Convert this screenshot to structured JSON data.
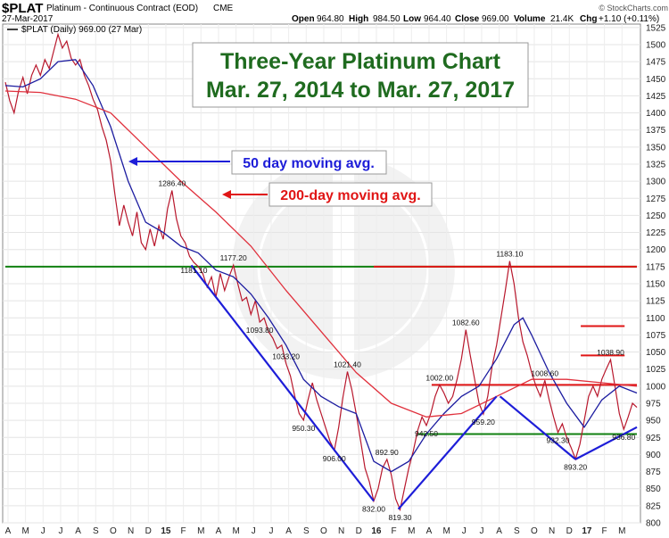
{
  "header": {
    "symbol": "$PLAT",
    "description": "Platinum - Continuous Contract (EOD)",
    "exchange": "CME",
    "date": "27-Mar-2017",
    "open_label": "Open",
    "open": "964.80",
    "high_label": "High",
    "high": "984.50",
    "low_label": "Low",
    "low": "964.40",
    "close_label": "Close",
    "close": "969.00",
    "volume_label": "Volume",
    "volume": "21.4K",
    "chg_label": "Chg",
    "chg": "+1.10 (+0.11%)",
    "watermark": "© StockCharts.com",
    "legend": "$PLAT (Daily) 969.00 (27 Mar)"
  },
  "colors": {
    "price": "#b8172c",
    "ma50": "#1c1ca0",
    "ma200": "#e0303c",
    "title": "#1f6b1f",
    "blue_line": "#1d1dd8",
    "green_line": "#108010",
    "red_line": "#e01515"
  },
  "chart_data": {
    "type": "line",
    "title_line1": "Three-Year Platinum Chart",
    "title_line2": "Mar. 27, 2014 to Mar. 27, 2017",
    "ylim": [
      800,
      1530
    ],
    "y_ticks": [
      800,
      825,
      850,
      875,
      900,
      925,
      950,
      975,
      1000,
      1025,
      1050,
      1075,
      1100,
      1125,
      1150,
      1175,
      1200,
      1225,
      1250,
      1275,
      1300,
      1325,
      1350,
      1375,
      1400,
      1425,
      1450,
      1475,
      1500,
      1525
    ],
    "month_labels": [
      "A",
      "M",
      "J",
      "J",
      "A",
      "S",
      "O",
      "N",
      "D",
      "15",
      "F",
      "M",
      "A",
      "M",
      "J",
      "J",
      "A",
      "S",
      "O",
      "N",
      "D",
      "16",
      "F",
      "M",
      "A",
      "M",
      "J",
      "J",
      "A",
      "S",
      "O",
      "N",
      "D",
      "17",
      "F",
      "M"
    ],
    "x_range": [
      0,
      36
    ],
    "series": [
      {
        "key": "price",
        "points": [
          [
            0,
            1445
          ],
          [
            0.25,
            1418
          ],
          [
            0.5,
            1400
          ],
          [
            0.75,
            1432
          ],
          [
            1,
            1452
          ],
          [
            1.25,
            1428
          ],
          [
            1.5,
            1455
          ],
          [
            1.75,
            1470
          ],
          [
            2,
            1455
          ],
          [
            2.25,
            1478
          ],
          [
            2.5,
            1465
          ],
          [
            2.75,
            1490
          ],
          [
            3,
            1515
          ],
          [
            3.25,
            1495
          ],
          [
            3.5,
            1505
          ],
          [
            3.75,
            1480
          ],
          [
            4,
            1470
          ],
          [
            4.25,
            1478
          ],
          [
            4.5,
            1455
          ],
          [
            4.75,
            1440
          ],
          [
            5,
            1420
          ],
          [
            5.25,
            1405
          ],
          [
            5.5,
            1380
          ],
          [
            5.75,
            1360
          ],
          [
            6,
            1330
          ],
          [
            6.25,
            1280
          ],
          [
            6.5,
            1235
          ],
          [
            6.75,
            1265
          ],
          [
            7,
            1240
          ],
          [
            7.25,
            1220
          ],
          [
            7.5,
            1255
          ],
          [
            7.75,
            1210
          ],
          [
            8,
            1200
          ],
          [
            8.25,
            1230
          ],
          [
            8.5,
            1205
          ],
          [
            8.75,
            1235
          ],
          [
            9,
            1215
          ],
          [
            9.25,
            1260
          ],
          [
            9.5,
            1286.4
          ],
          [
            9.75,
            1245
          ],
          [
            10,
            1220
          ],
          [
            10.25,
            1210
          ],
          [
            10.5,
            1190
          ],
          [
            10.75,
            1181.1
          ],
          [
            11,
            1175
          ],
          [
            11.25,
            1165
          ],
          [
            11.5,
            1145
          ],
          [
            11.75,
            1160
          ],
          [
            12,
            1130
          ],
          [
            12.25,
            1165
          ],
          [
            12.5,
            1140
          ],
          [
            12.75,
            1160
          ],
          [
            13,
            1177.2
          ],
          [
            13.25,
            1150
          ],
          [
            13.5,
            1125
          ],
          [
            13.75,
            1130
          ],
          [
            14,
            1105
          ],
          [
            14.25,
            1125
          ],
          [
            14.5,
            1093.8
          ],
          [
            14.75,
            1100
          ],
          [
            15,
            1080
          ],
          [
            15.25,
            1070
          ],
          [
            15.5,
            1055
          ],
          [
            15.75,
            1060
          ],
          [
            16,
            1033.2
          ],
          [
            16.25,
            1015
          ],
          [
            16.5,
            985
          ],
          [
            16.75,
            960
          ],
          [
            17,
            950.3
          ],
          [
            17.25,
            980
          ],
          [
            17.5,
            1005
          ],
          [
            17.75,
            980
          ],
          [
            18,
            960
          ],
          [
            18.25,
            940
          ],
          [
            18.5,
            920
          ],
          [
            18.75,
            906
          ],
          [
            19,
            940
          ],
          [
            19.25,
            985
          ],
          [
            19.5,
            1021.4
          ],
          [
            19.75,
            995
          ],
          [
            20,
            960
          ],
          [
            20.25,
            920
          ],
          [
            20.5,
            880
          ],
          [
            20.75,
            860
          ],
          [
            21,
            832
          ],
          [
            21.25,
            850
          ],
          [
            21.5,
            880
          ],
          [
            21.75,
            892.9
          ],
          [
            22,
            870
          ],
          [
            22.25,
            835
          ],
          [
            22.5,
            819.3
          ],
          [
            22.75,
            850
          ],
          [
            23,
            880
          ],
          [
            23.25,
            905
          ],
          [
            23.5,
            935
          ],
          [
            23.75,
            955
          ],
          [
            24,
            942.5
          ],
          [
            24.25,
            960
          ],
          [
            24.5,
            985
          ],
          [
            24.75,
            1002
          ],
          [
            25,
            990
          ],
          [
            25.25,
            975
          ],
          [
            25.5,
            985
          ],
          [
            25.75,
            1010
          ],
          [
            26,
            1040
          ],
          [
            26.25,
            1082.6
          ],
          [
            26.5,
            1045
          ],
          [
            26.75,
            1010
          ],
          [
            27,
            975
          ],
          [
            27.25,
            959.2
          ],
          [
            27.5,
            985
          ],
          [
            27.75,
            1030
          ],
          [
            28,
            1060
          ],
          [
            28.25,
            1100
          ],
          [
            28.5,
            1140
          ],
          [
            28.75,
            1183.1
          ],
          [
            29,
            1150
          ],
          [
            29.25,
            1100
          ],
          [
            29.5,
            1065
          ],
          [
            29.75,
            1045
          ],
          [
            30,
            1020
          ],
          [
            30.25,
            1000
          ],
          [
            30.5,
            985
          ],
          [
            30.75,
            1008.6
          ],
          [
            31,
            980
          ],
          [
            31.25,
            955
          ],
          [
            31.5,
            932.3
          ],
          [
            31.75,
            945
          ],
          [
            32,
            925
          ],
          [
            32.25,
            910
          ],
          [
            32.5,
            893.2
          ],
          [
            32.75,
            915
          ],
          [
            33,
            950
          ],
          [
            33.25,
            985
          ],
          [
            33.5,
            1000
          ],
          [
            33.75,
            985
          ],
          [
            34,
            1010
          ],
          [
            34.25,
            1025
          ],
          [
            34.5,
            1038.9
          ],
          [
            34.75,
            1000
          ],
          [
            35,
            960
          ],
          [
            35.25,
            936.8
          ],
          [
            35.5,
            955
          ],
          [
            35.75,
            975
          ],
          [
            36,
            969
          ]
        ]
      },
      {
        "key": "ma50",
        "points": [
          [
            0,
            1440
          ],
          [
            1,
            1438
          ],
          [
            2,
            1450
          ],
          [
            3,
            1475
          ],
          [
            4,
            1478
          ],
          [
            5,
            1440
          ],
          [
            6,
            1380
          ],
          [
            7,
            1300
          ],
          [
            8,
            1240
          ],
          [
            9,
            1225
          ],
          [
            9.5,
            1215
          ],
          [
            10,
            1205
          ],
          [
            11,
            1195
          ],
          [
            12,
            1170
          ],
          [
            13,
            1160
          ],
          [
            14,
            1135
          ],
          [
            15,
            1100
          ],
          [
            16,
            1060
          ],
          [
            17,
            1010
          ],
          [
            18,
            985
          ],
          [
            19,
            970
          ],
          [
            20,
            960
          ],
          [
            21,
            890
          ],
          [
            22,
            875
          ],
          [
            23,
            890
          ],
          [
            24,
            930
          ],
          [
            25,
            960
          ],
          [
            26,
            985
          ],
          [
            27,
            1000
          ],
          [
            28,
            1040
          ],
          [
            29,
            1090
          ],
          [
            29.5,
            1100
          ],
          [
            30,
            1075
          ],
          [
            31,
            1020
          ],
          [
            32,
            975
          ],
          [
            33,
            940
          ],
          [
            34,
            980
          ],
          [
            35,
            1000
          ],
          [
            36,
            990
          ]
        ]
      },
      {
        "key": "ma200",
        "points": [
          [
            0,
            1432
          ],
          [
            2,
            1430
          ],
          [
            4,
            1420
          ],
          [
            6,
            1400
          ],
          [
            8,
            1350
          ],
          [
            10,
            1300
          ],
          [
            12,
            1255
          ],
          [
            14,
            1205
          ],
          [
            16,
            1140
          ],
          [
            18,
            1080
          ],
          [
            20,
            1020
          ],
          [
            22,
            975
          ],
          [
            24,
            955
          ],
          [
            26,
            960
          ],
          [
            28,
            985
          ],
          [
            30,
            1010
          ],
          [
            32,
            1010
          ],
          [
            34,
            1005
          ],
          [
            36,
            1000
          ]
        ]
      }
    ],
    "price_labels": [
      {
        "text": "1286.40",
        "x": 9.5,
        "y": 1286.4,
        "pos": "above"
      },
      {
        "text": "1181.10",
        "x": 10.75,
        "y": 1181.1,
        "pos": "below"
      },
      {
        "text": "1177.20",
        "x": 13,
        "y": 1177.2,
        "pos": "above"
      },
      {
        "text": "1093.80",
        "x": 14.5,
        "y": 1093.8,
        "pos": "below"
      },
      {
        "text": "1033.20",
        "x": 16,
        "y": 1033.2,
        "pos": "above"
      },
      {
        "text": "1021.40",
        "x": 19.5,
        "y": 1021.4,
        "pos": "above"
      },
      {
        "text": "950.30",
        "x": 17,
        "y": 950.3,
        "pos": "below"
      },
      {
        "text": "906.00",
        "x": 18.75,
        "y": 906,
        "pos": "below"
      },
      {
        "text": "892.90",
        "x": 21.75,
        "y": 892.9,
        "pos": "above"
      },
      {
        "text": "832.00",
        "x": 21,
        "y": 832,
        "pos": "below"
      },
      {
        "text": "819.30",
        "x": 22.5,
        "y": 819.3,
        "pos": "below"
      },
      {
        "text": "1002.00",
        "x": 24.75,
        "y": 1002,
        "pos": "above"
      },
      {
        "text": "942.50",
        "x": 24,
        "y": 942.5,
        "pos": "below"
      },
      {
        "text": "1082.60",
        "x": 26.25,
        "y": 1082.6,
        "pos": "above"
      },
      {
        "text": "959.20",
        "x": 27.25,
        "y": 959.2,
        "pos": "below"
      },
      {
        "text": "1183.10",
        "x": 28.75,
        "y": 1183.1,
        "pos": "above"
      },
      {
        "text": "1008.60",
        "x": 30.75,
        "y": 1008.6,
        "pos": "above"
      },
      {
        "text": "932.30",
        "x": 31.5,
        "y": 932.3,
        "pos": "below"
      },
      {
        "text": "893.20",
        "x": 32.5,
        "y": 893.2,
        "pos": "below"
      },
      {
        "text": "1038.90",
        "x": 34.5,
        "y": 1038.9,
        "pos": "above"
      },
      {
        "text": "936.80",
        "x": 35.25,
        "y": 936.8,
        "pos": "below"
      }
    ],
    "annotations": {
      "ma50_label": "50 day moving avg.",
      "ma200_label": "200-day moving avg.",
      "h_lines": [
        {
          "key": "green",
          "y": 1175,
          "x1": 0,
          "x2": 36
        },
        {
          "key": "red",
          "y": 1175,
          "x1": 21,
          "x2": 36
        },
        {
          "key": "green",
          "y": 930,
          "x1": 23.5,
          "x2": 36
        },
        {
          "key": "red",
          "y": 1002,
          "x1": 24.3,
          "x2": 36
        },
        {
          "key": "red",
          "y": 1045,
          "x1": 32.8,
          "x2": 35.3
        },
        {
          "key": "red",
          "y": 1088,
          "x1": 32.8,
          "x2": 35.3
        }
      ],
      "trend_lines": [
        [
          [
            10.6,
            1177
          ],
          [
            21,
            832
          ]
        ],
        [
          [
            22.4,
            820
          ],
          [
            28,
            985
          ]
        ],
        [
          [
            28.2,
            985
          ],
          [
            32.5,
            893
          ]
        ],
        [
          [
            32.5,
            893
          ],
          [
            36,
            940
          ]
        ]
      ]
    }
  }
}
